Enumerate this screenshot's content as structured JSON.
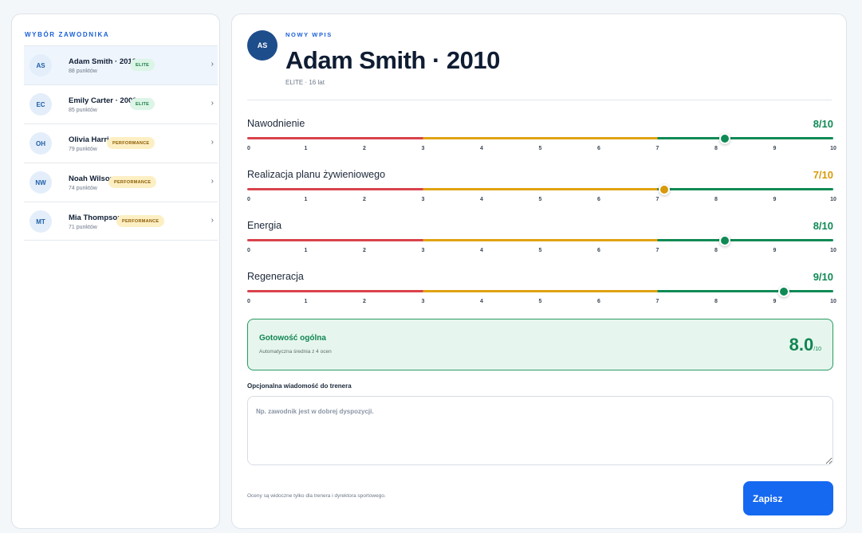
{
  "sidebar": {
    "title": "WYBÓR ZAWODNIKA",
    "athletes": [
      {
        "initials": "AS",
        "name": "Adam Smith · 2010",
        "points": "88 punktów",
        "badge": "ELITE",
        "badge_type": "elite",
        "selected": true
      },
      {
        "initials": "EC",
        "name": "Emily Carter · 2009",
        "points": "85 punktów",
        "badge": "ELITE",
        "badge_type": "elite",
        "selected": false
      },
      {
        "initials": "OH",
        "name": "Olivia Harris",
        "points": "79 punktów",
        "badge": "PERFORMANCE",
        "badge_type": "performance",
        "selected": false
      },
      {
        "initials": "NW",
        "name": "Noah Wilson",
        "points": "74 punktów",
        "badge": "PERFORMANCE",
        "badge_type": "performance",
        "selected": false
      },
      {
        "initials": "MT",
        "name": "Mia Thompson",
        "points": "71 punktów",
        "badge": "PERFORMANCE",
        "badge_type": "performance",
        "selected": false
      }
    ]
  },
  "header": {
    "avatar_initials": "AS",
    "eyebrow": "NOWY WPIS",
    "title": "Adam Smith · 2010",
    "subtitle": "ELITE · 16 lat"
  },
  "ratings": [
    {
      "label": "Nawodnienie",
      "value": 8,
      "value_text": "8/10",
      "color": "#108a55"
    },
    {
      "label": "Realizacja planu żywieniowego",
      "value": 7,
      "value_text": "7/10",
      "color": "#d89a0c"
    },
    {
      "label": "Energia",
      "value": 8,
      "value_text": "8/10",
      "color": "#108a55"
    },
    {
      "label": "Regeneracja",
      "value": 9,
      "value_text": "9/10",
      "color": "#108a55"
    }
  ],
  "scale": {
    "min": 0,
    "max": 10,
    "ticks": [
      "0",
      "1",
      "2",
      "3",
      "4",
      "5",
      "6",
      "7",
      "8",
      "9",
      "10"
    ]
  },
  "readiness": {
    "title": "Gotowość ogólna",
    "description": "Automatyczna średnia z 4 ocen",
    "score": "8.0",
    "suffix": "/10"
  },
  "message": {
    "label": "Opcjonalna wiadomość do trenera",
    "placeholder": "Np. zawodnik jest w dobrej dyspozycji.",
    "value": ""
  },
  "footer": {
    "note": "Oceny są widoczne tylko dla trenera i dyrektora sportowego.",
    "save_label": "Zapisz"
  },
  "colors": {
    "accent": "#1568f0",
    "low": "#d9434c",
    "mid": "#e0a412",
    "high": "#108a55"
  }
}
